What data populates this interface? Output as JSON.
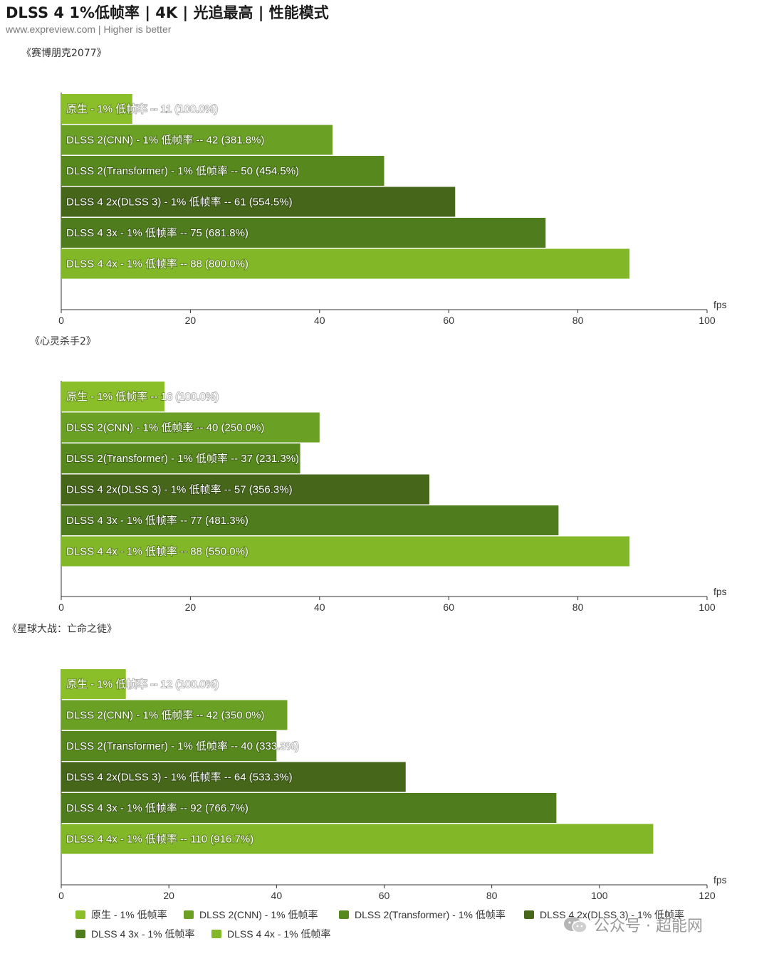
{
  "header": {
    "title": "DLSS 4 1%低帧率 | 4K | 光追最高 | 性能模式",
    "subtitle": "www.expreview.com | Higher is better"
  },
  "colors": {
    "native": "#8abf2a",
    "dlss2_cnn": "#6aa024",
    "dlss2_transformer": "#56881d",
    "dlss4_2x": "#46661a",
    "dlss4_3x": "#4f7c1c",
    "dlss4_4x": "#82b827"
  },
  "watermark": {
    "text": "公众号 · 超能网",
    "icon": "wechat-icon"
  },
  "chart_data": [
    {
      "type": "bar",
      "orientation": "horizontal",
      "title": "《赛博朋克2077》",
      "xlabel": "fps",
      "xlim": [
        0,
        100
      ],
      "xticks": [
        0,
        20,
        40,
        60,
        80,
        100
      ],
      "categories": [
        "原生",
        "DLSS 2(CNN)",
        "DLSS 2(Transformer)",
        "DLSS 4 2x(DLSS 3)",
        "DLSS 4 3x",
        "DLSS 4 4x"
      ],
      "values": [
        11,
        42,
        50,
        61,
        75,
        88
      ],
      "labels": [
        "原生 -  1% 低帧率  --  11 (100.0%)",
        "DLSS 2(CNN)  -  1% 低帧率  --  42 (381.8%)",
        "DLSS 2(Transformer) - 1% 低帧率  --  50 (454.5%)",
        "DLSS 4 2x(DLSS 3)  - 1% 低帧率  --  61 (554.5%)",
        "DLSS 4 3x  - 1% 低帧率  --  75 (681.8%)",
        "DLSS 4 4x  - 1% 低帧率  --  88 (800.0%)"
      ]
    },
    {
      "type": "bar",
      "orientation": "horizontal",
      "title": "《心灵杀手2》",
      "xlabel": "fps",
      "xlim": [
        0,
        100
      ],
      "xticks": [
        0,
        20,
        40,
        60,
        80,
        100
      ],
      "categories": [
        "原生",
        "DLSS 2(CNN)",
        "DLSS 2(Transformer)",
        "DLSS 4 2x(DLSS 3)",
        "DLSS 4 3x",
        "DLSS 4 4x"
      ],
      "values": [
        16,
        40,
        37,
        57,
        77,
        88
      ],
      "labels": [
        "原生 -  1% 低帧率  --  16 (100.0%)",
        "DLSS 2(CNN)  -  1% 低帧率  --  40 (250.0%)",
        "DLSS 2(Transformer) - 1% 低帧率  --  37 (231.3%)",
        "DLSS 4 2x(DLSS 3)  - 1% 低帧率  --  57 (356.3%)",
        "DLSS 4 3x  - 1% 低帧率  --  77 (481.3%)",
        "DLSS 4 4x  - 1% 低帧率  --  88 (550.0%)"
      ]
    },
    {
      "type": "bar",
      "orientation": "horizontal",
      "title": "《星球大战：亡命之徒》",
      "xlabel": "fps",
      "xlim": [
        0,
        120
      ],
      "xticks": [
        0,
        20,
        40,
        60,
        80,
        100,
        120
      ],
      "categories": [
        "原生",
        "DLSS 2(CNN)",
        "DLSS 2(Transformer)",
        "DLSS 4 2x(DLSS 3)",
        "DLSS 4 3x",
        "DLSS 4 4x"
      ],
      "values": [
        12,
        42,
        40,
        64,
        92,
        110
      ],
      "labels": [
        "原生 -  1% 低帧率  --  12 (100.0%)",
        "DLSS 2(CNN)  -  1% 低帧率  --  42 (350.0%)",
        "DLSS 2(Transformer) - 1% 低帧率  --  40 (333.3%)",
        "DLSS 4 2x(DLSS 3)  - 1% 低帧率  --  64 (533.3%)",
        "DLSS 4 3x  - 1% 低帧率  --  92 (766.7%)",
        "DLSS 4 4x  - 1% 低帧率  --  110 (916.7%)"
      ]
    }
  ],
  "legend": {
    "placement": "bottom",
    "items": [
      {
        "label": "原生 -  1% 低帧率",
        "color_key": "native"
      },
      {
        "label": "DLSS 2(CNN)  -  1% 低帧率",
        "color_key": "dlss2_cnn"
      },
      {
        "label": "DLSS 2(Transformer) - 1% 低帧率",
        "color_key": "dlss2_transformer"
      },
      {
        "label": "DLSS 4 2x(DLSS 3)  - 1% 低帧率",
        "color_key": "dlss4_2x"
      },
      {
        "label": "DLSS 4 3x  - 1% 低帧率",
        "color_key": "dlss4_3x"
      },
      {
        "label": "DLSS 4 4x  - 1% 低帧率",
        "color_key": "dlss4_4x"
      }
    ]
  }
}
